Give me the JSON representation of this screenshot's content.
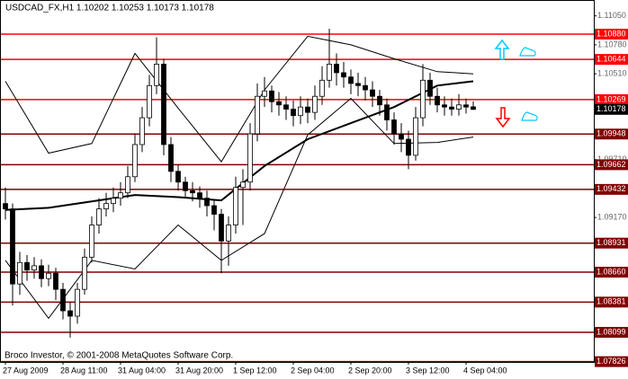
{
  "chart_data": {
    "type": "candlestick",
    "title": "USDCAD_FX,H1  1.10202 1.10253 1.10173 1.10178",
    "footer": "Broco Investor, © 2001-2008 MetaQuotes Software Corp.",
    "categories": [
      "27 Aug 2009",
      null,
      null,
      null,
      null,
      null,
      null,
      null,
      "28 Aug 11:00",
      null,
      null,
      null,
      null,
      null,
      null,
      null,
      "31 Aug 04:00",
      null,
      null,
      null,
      null,
      null,
      null,
      null,
      "31 Aug 20:00",
      null,
      null,
      null,
      null,
      null,
      null,
      null,
      "1 Sep 12:00",
      null,
      null,
      null,
      null,
      null,
      null,
      null,
      "2 Sep 04:00",
      null,
      null,
      null,
      null,
      null,
      null,
      null,
      "2 Sep 20:00",
      null,
      null,
      null,
      null,
      null,
      null,
      null,
      "3 Sep 12:00",
      null,
      null,
      null,
      null,
      null,
      null,
      null,
      "4 Sep 04:00",
      null
    ],
    "open": [
      1.093,
      1.0925,
      1.0855,
      1.0875,
      1.0868,
      1.0872,
      1.086,
      1.0865,
      1.085,
      1.083,
      1.0825,
      1.085,
      1.088,
      1.091,
      1.0925,
      1.093,
      1.0935,
      1.094,
      1.0955,
      1.0985,
      1.101,
      1.104,
      1.106,
      1.0985,
      1.096,
      1.095,
      1.0942,
      1.094,
      1.0935,
      1.0928,
      1.092,
      1.0895,
      1.091,
      1.0945,
      1.095,
      1.0995,
      1.103,
      1.1035,
      1.1025,
      1.1022,
      1.1018,
      1.1012,
      1.102,
      1.1015,
      1.103,
      1.1045,
      1.106,
      1.1052,
      1.1048,
      1.1042,
      1.104,
      1.1036,
      1.103,
      1.1022,
      1.1008,
      1.0995,
      1.099,
      1.0975,
      1.101,
      1.1045,
      1.103,
      1.1022,
      1.102,
      1.1018,
      1.1022,
      1.10202
    ],
    "high": [
      1.0945,
      1.093,
      1.0885,
      1.0882,
      1.088,
      1.0878,
      1.0873,
      1.087,
      1.0856,
      1.0838,
      1.0856,
      1.0888,
      1.0918,
      1.0935,
      1.094,
      1.0945,
      1.095,
      1.0965,
      1.0995,
      1.102,
      1.105,
      1.1085,
      1.1065,
      1.0992,
      1.0966,
      1.0955,
      1.095,
      1.0946,
      1.0942,
      1.0934,
      1.0925,
      1.0918,
      1.0955,
      1.0962,
      1.1005,
      1.1042,
      1.1048,
      1.104,
      1.1034,
      1.103,
      1.1026,
      1.103,
      1.1028,
      1.104,
      1.1058,
      1.1093,
      1.107,
      1.1062,
      1.1055,
      1.1052,
      1.1048,
      1.1044,
      1.1036,
      1.1028,
      1.1015,
      1.1005,
      1.0998,
      1.102,
      1.106,
      1.1052,
      1.1038,
      1.103,
      1.1028,
      1.1032,
      1.1028,
      1.10253
    ],
    "low": [
      1.0915,
      1.0835,
      1.0845,
      1.0858,
      1.086,
      1.0852,
      1.0853,
      1.084,
      1.0822,
      1.0805,
      1.0818,
      1.0845,
      1.0875,
      1.0902,
      1.0918,
      1.0922,
      1.0928,
      1.0935,
      1.095,
      1.0978,
      1.1002,
      1.1032,
      1.0975,
      1.095,
      1.0942,
      1.0935,
      1.0932,
      1.0926,
      1.0918,
      1.0905,
      1.0865,
      1.0872,
      1.0902,
      1.091,
      1.0942,
      1.0988,
      1.102,
      1.1015,
      1.1012,
      1.1008,
      1.1002,
      1.1004,
      1.1005,
      1.1008,
      1.1022,
      1.1038,
      1.104,
      1.1038,
      1.1032,
      1.103,
      1.1026,
      1.102,
      1.1012,
      1.0998,
      1.0985,
      1.0978,
      1.0962,
      1.097,
      1.1002,
      1.1022,
      1.1015,
      1.1012,
      1.1012,
      1.1012,
      1.1014,
      1.10173
    ],
    "close": [
      1.0925,
      1.0855,
      1.0875,
      1.0868,
      1.0872,
      1.086,
      1.0865,
      1.085,
      1.083,
      1.0825,
      1.085,
      1.088,
      1.091,
      1.0925,
      1.093,
      1.0935,
      1.094,
      1.0955,
      1.0985,
      1.101,
      1.104,
      1.106,
      1.0985,
      1.096,
      1.095,
      1.0942,
      1.094,
      1.0935,
      1.0928,
      1.092,
      1.0895,
      1.091,
      1.0945,
      1.095,
      1.0995,
      1.103,
      1.1035,
      1.1025,
      1.1022,
      1.1018,
      1.1012,
      1.102,
      1.1015,
      1.103,
      1.1045,
      1.106,
      1.1052,
      1.1048,
      1.1042,
      1.104,
      1.1036,
      1.103,
      1.1022,
      1.1008,
      1.0995,
      1.099,
      1.0975,
      1.101,
      1.1045,
      1.103,
      1.1022,
      1.102,
      1.1018,
      1.1022,
      1.102,
      1.10178
    ],
    "overlays": [
      {
        "color": "#000000",
        "width": 2,
        "x": [
          0,
          6,
          12,
          18,
          24,
          30,
          36,
          42,
          48,
          54,
          60,
          65
        ],
        "values": [
          1.0924,
          1.0926,
          1.0932,
          1.0938,
          1.0936,
          1.0933,
          1.0965,
          1.099,
          1.1005,
          1.102,
          1.104,
          1.1044
        ]
      },
      {
        "color": "#000000",
        "width": 1,
        "x": [
          0,
          6,
          12,
          18,
          24,
          30,
          36,
          42,
          48,
          54,
          60,
          65
        ],
        "values": [
          1.1044,
          1.0977,
          1.0986,
          1.107,
          1.1019,
          1.0969,
          1.1036,
          1.1086,
          1.1078,
          1.1065,
          1.1053,
          1.1051
        ]
      },
      {
        "color": "#000000",
        "width": 1,
        "x": [
          0,
          6,
          12,
          18,
          24,
          30,
          36,
          42,
          48,
          54,
          60,
          65
        ],
        "values": [
          1.0877,
          1.0823,
          1.0877,
          1.0869,
          1.091,
          1.0877,
          1.0902,
          1.0994,
          1.1028,
          1.0986,
          1.0987,
          1.0992
        ]
      }
    ],
    "levels": [
      {
        "value": 1.1088,
        "label": "1.10880",
        "color": "#ff0000"
      },
      {
        "value": 1.10644,
        "label": "1.10644",
        "color": "#ff0000"
      },
      {
        "value": 1.10269,
        "label": "1.10269",
        "color": "#ff0000"
      },
      {
        "value": 1.09948,
        "label": "1.09948",
        "color": "#800000"
      },
      {
        "value": 1.09662,
        "label": "1.09662",
        "color": "#800000"
      },
      {
        "value": 1.09432,
        "label": "1.09432",
        "color": "#800000"
      },
      {
        "value": 1.08931,
        "label": "1.08931",
        "color": "#800000"
      },
      {
        "value": 1.0866,
        "label": "1.08660",
        "color": "#800000"
      },
      {
        "value": 1.08381,
        "label": "1.08381",
        "color": "#800000"
      },
      {
        "value": 1.08099,
        "label": "1.08099",
        "color": "#800000"
      },
      {
        "value": 1.07826,
        "label": "1.07826",
        "color": "#800000"
      }
    ],
    "xlim": [
      -0.75,
      81.75
    ],
    "ylim": [
      1.07823,
      1.11198
    ],
    "yticks": [
      {
        "value": 1.1105,
        "label": "1.11050"
      },
      {
        "value": 1.1078,
        "label": "1.10780"
      },
      {
        "value": 1.1051,
        "label": "1.10510"
      },
      {
        "value": 1.0971,
        "label": "1.09710"
      },
      {
        "value": 1.0917,
        "label": "1.09170"
      }
    ],
    "up_color": "#ffffff",
    "down_color": "#000000"
  }
}
